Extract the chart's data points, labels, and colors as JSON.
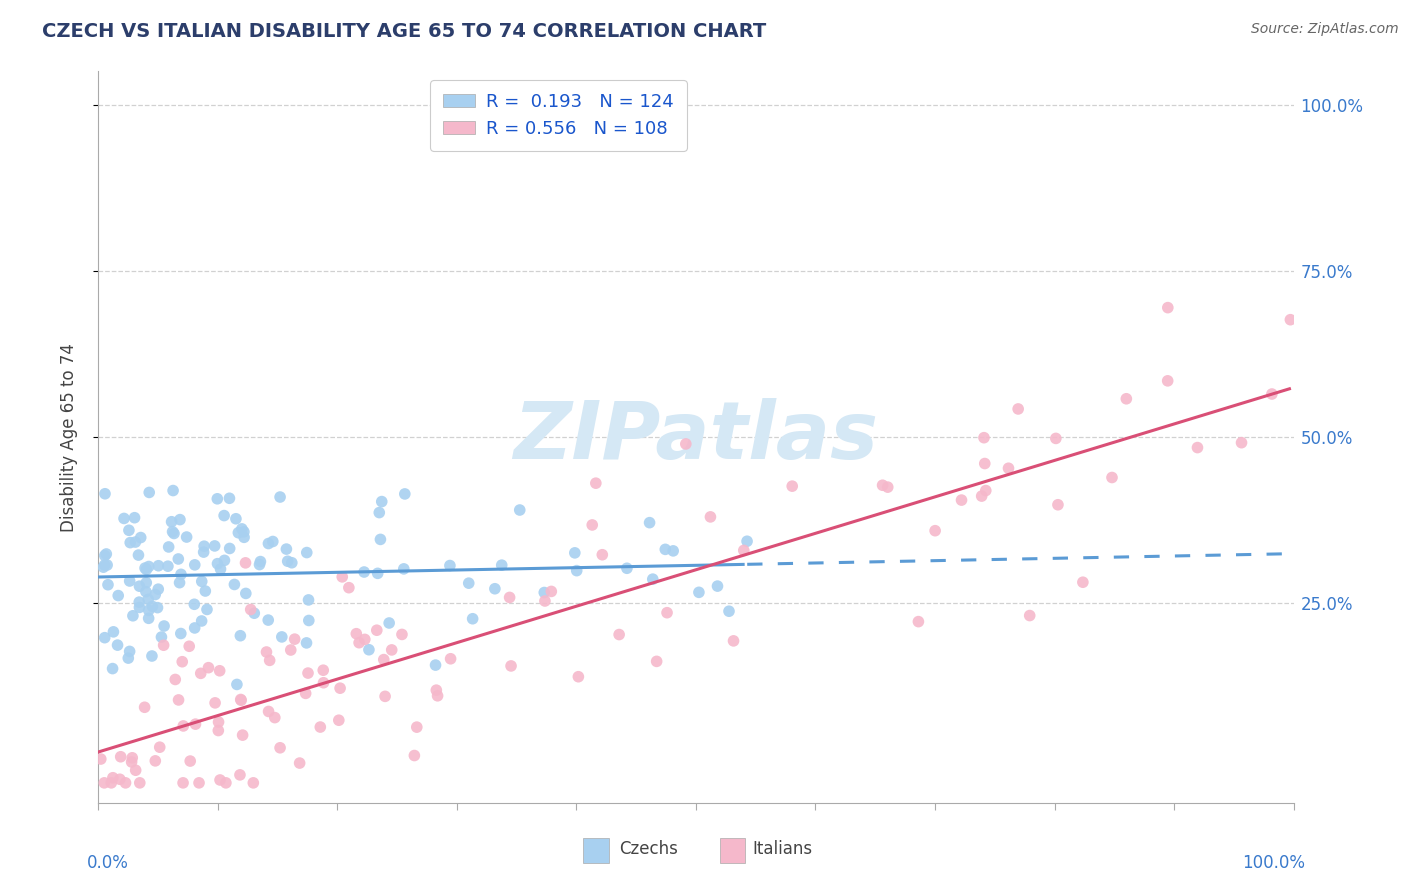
{
  "title": "CZECH VS ITALIAN DISABILITY AGE 65 TO 74 CORRELATION CHART",
  "source": "Source: ZipAtlas.com",
  "ylabel": "Disability Age 65 to 74",
  "czech_R": 0.193,
  "czech_N": 124,
  "italian_R": 0.556,
  "italian_N": 108,
  "czech_color": "#a8d0f0",
  "italian_color": "#f5b8cb",
  "czech_line_color": "#5b9bd5",
  "italian_line_color": "#d94f76",
  "background_color": "#ffffff",
  "grid_color": "#cccccc",
  "title_color": "#2c3e6b",
  "legend_text_color": "#1a56cc",
  "axis_label_color": "#3a7acc",
  "watermark_color": "#d5e8f5",
  "ytick_labels": [
    "25.0%",
    "50.0%",
    "75.0%",
    "100.0%"
  ],
  "ytick_vals": [
    0.25,
    0.5,
    0.75,
    1.0
  ],
  "xlim": [
    0.0,
    1.0
  ],
  "ylim": [
    -0.05,
    1.05
  ]
}
